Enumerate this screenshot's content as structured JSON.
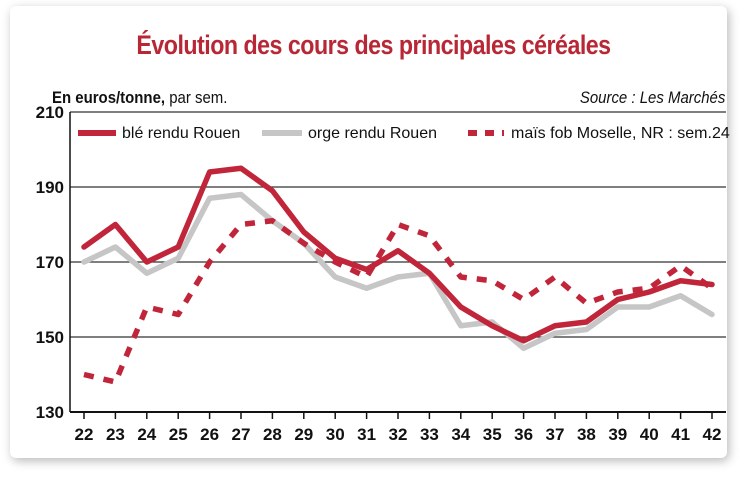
{
  "title": "Évolution des cours des principales céréales",
  "unit_bold": "En euros/tonne,",
  "unit_rest": " par sem.",
  "source": "Source : Les Marchés",
  "chart_data": {
    "type": "line",
    "title": "Évolution des cours des principales céréales",
    "ylabel": "En euros/tonne, par sem.",
    "ylim": [
      130,
      210
    ],
    "yticks": [
      130,
      150,
      170,
      190,
      210
    ],
    "x": [
      "22",
      "23",
      "24",
      "25",
      "26",
      "27",
      "28",
      "29",
      "30",
      "31",
      "32",
      "33",
      "34",
      "35",
      "36",
      "37",
      "38",
      "39",
      "40",
      "41",
      "42"
    ],
    "grid": "horizontal",
    "legend": "top",
    "series": [
      {
        "name": "blé rendu Rouen",
        "color": "#c0253a",
        "style": "solid",
        "values": [
          174,
          180,
          170,
          174,
          194,
          195,
          189,
          178,
          171,
          168,
          173,
          167,
          158,
          153,
          149,
          153,
          154,
          160,
          162,
          165,
          164
        ]
      },
      {
        "name": "orge rendu Rouen",
        "color": "#c6c6c6",
        "style": "solid",
        "values": [
          170,
          174,
          167,
          171,
          187,
          188,
          181,
          175,
          166,
          163,
          166,
          167,
          153,
          154,
          147,
          151,
          152,
          158,
          158,
          161,
          156
        ]
      },
      {
        "name": "maïs fob Moselle, NR : sem.24",
        "color": "#c0253a",
        "style": "dashed",
        "values": [
          140,
          138,
          158,
          156,
          170,
          180,
          181,
          175,
          170,
          166,
          180,
          177,
          166,
          165,
          160,
          166,
          159,
          162,
          163,
          169,
          163
        ]
      }
    ]
  }
}
